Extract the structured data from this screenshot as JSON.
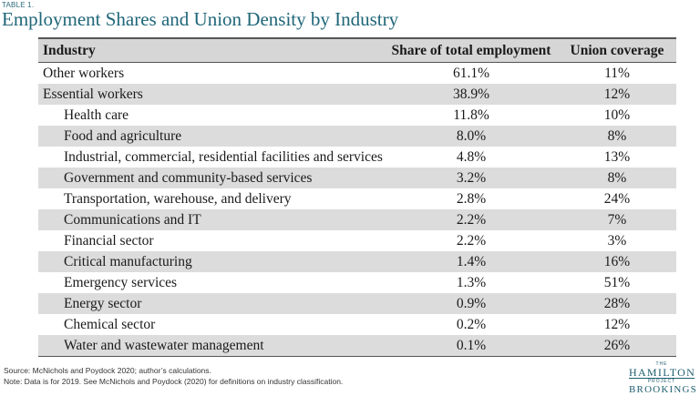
{
  "header": {
    "label": "TABLE 1.",
    "title": "Employment Shares and Union Density by Industry"
  },
  "table": {
    "columns": [
      "Industry",
      "Share of total employment",
      "Union coverage"
    ],
    "rows": [
      {
        "industry": "Other workers",
        "share": "61.1%",
        "union": "11%",
        "indent": false
      },
      {
        "industry": "Essential workers",
        "share": "38.9%",
        "union": "12%",
        "indent": false
      },
      {
        "industry": "Health care",
        "share": "11.8%",
        "union": "10%",
        "indent": true
      },
      {
        "industry": "Food and agriculture",
        "share": "8.0%",
        "union": "8%",
        "indent": true
      },
      {
        "industry": "Industrial, commercial, residential facilities and services",
        "share": "4.8%",
        "union": "13%",
        "indent": true
      },
      {
        "industry": "Government and community-based services",
        "share": "3.2%",
        "union": "8%",
        "indent": true
      },
      {
        "industry": "Transportation, warehouse, and delivery",
        "share": "2.8%",
        "union": "24%",
        "indent": true
      },
      {
        "industry": "Communications and IT",
        "share": "2.2%",
        "union": "7%",
        "indent": true
      },
      {
        "industry": "Financial sector",
        "share": "2.2%",
        "union": "3%",
        "indent": true
      },
      {
        "industry": "Critical manufacturing",
        "share": "1.4%",
        "union": "16%",
        "indent": true
      },
      {
        "industry": "Emergency services",
        "share": "1.3%",
        "union": "51%",
        "indent": true
      },
      {
        "industry": "Energy sector",
        "share": "0.9%",
        "union": "28%",
        "indent": true
      },
      {
        "industry": "Chemical sector",
        "share": "0.2%",
        "union": "12%",
        "indent": true
      },
      {
        "industry": "Water and wastewater management",
        "share": "0.1%",
        "union": "26%",
        "indent": true
      }
    ]
  },
  "footer": {
    "source": "Source: McNichols and Poydock 2020; author’s calculations.",
    "note": "Note: Data is for 2019. See McNichols and Poydock (2020) for definitions on industry classification."
  },
  "logo": {
    "the": "THE",
    "hamilton": "HAMILTON",
    "project": "PROJECT",
    "brookings": "BROOKINGS"
  }
}
